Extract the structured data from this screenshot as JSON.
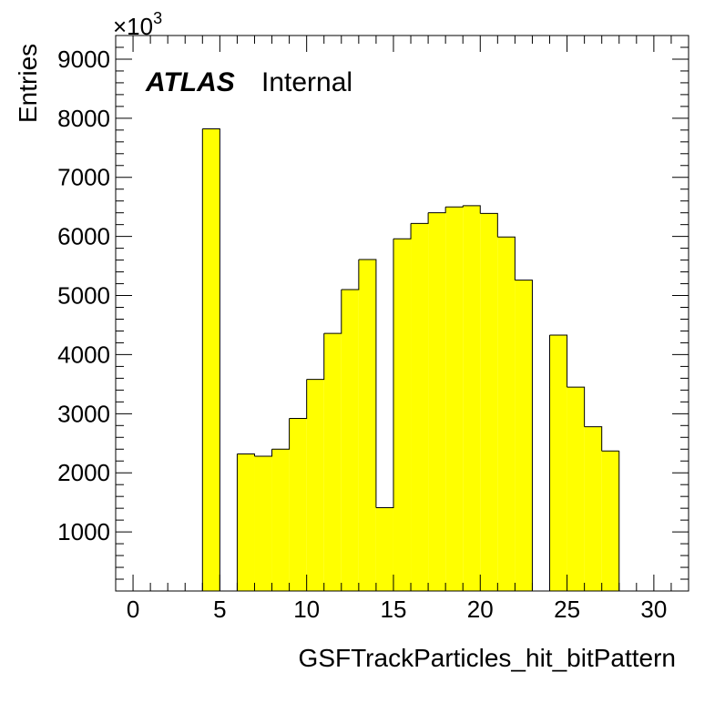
{
  "chart_data": {
    "type": "bar",
    "xlabel": "GSFTrackParticles_hit_bitPattern",
    "ylabel": "Entries",
    "y_multiplier": "×10",
    "y_multiplier_exponent": "3",
    "label_bold": "ATLAS",
    "label_status": "Internal",
    "xlim": [
      -1,
      32
    ],
    "ylim": [
      0,
      9400
    ],
    "x_ticks": [
      0,
      5,
      10,
      15,
      20,
      25,
      30
    ],
    "y_ticks": [
      1000,
      2000,
      3000,
      4000,
      5000,
      6000,
      7000,
      8000,
      9000
    ],
    "bin_width": 1,
    "bins": [
      {
        "low": 4,
        "value": 7820
      },
      {
        "low": 5,
        "value": 0
      },
      {
        "low": 6,
        "value": 2320
      },
      {
        "low": 7,
        "value": 2280
      },
      {
        "low": 8,
        "value": 2400
      },
      {
        "low": 9,
        "value": 2920
      },
      {
        "low": 10,
        "value": 3580
      },
      {
        "low": 11,
        "value": 4360
      },
      {
        "low": 12,
        "value": 5100
      },
      {
        "low": 13,
        "value": 5610
      },
      {
        "low": 14,
        "value": 1410
      },
      {
        "low": 15,
        "value": 5960
      },
      {
        "low": 16,
        "value": 6220
      },
      {
        "low": 17,
        "value": 6400
      },
      {
        "low": 18,
        "value": 6500
      },
      {
        "low": 19,
        "value": 6520
      },
      {
        "low": 20,
        "value": 6390
      },
      {
        "low": 21,
        "value": 5990
      },
      {
        "low": 22,
        "value": 5260
      },
      {
        "low": 23,
        "value": 0
      },
      {
        "low": 24,
        "value": 4330
      },
      {
        "low": 25,
        "value": 3450
      },
      {
        "low": 26,
        "value": 2780
      },
      {
        "low": 27,
        "value": 2370
      }
    ],
    "fill_color": "#ffff00",
    "line_color": "#000000",
    "grid": false,
    "legend": "none"
  }
}
